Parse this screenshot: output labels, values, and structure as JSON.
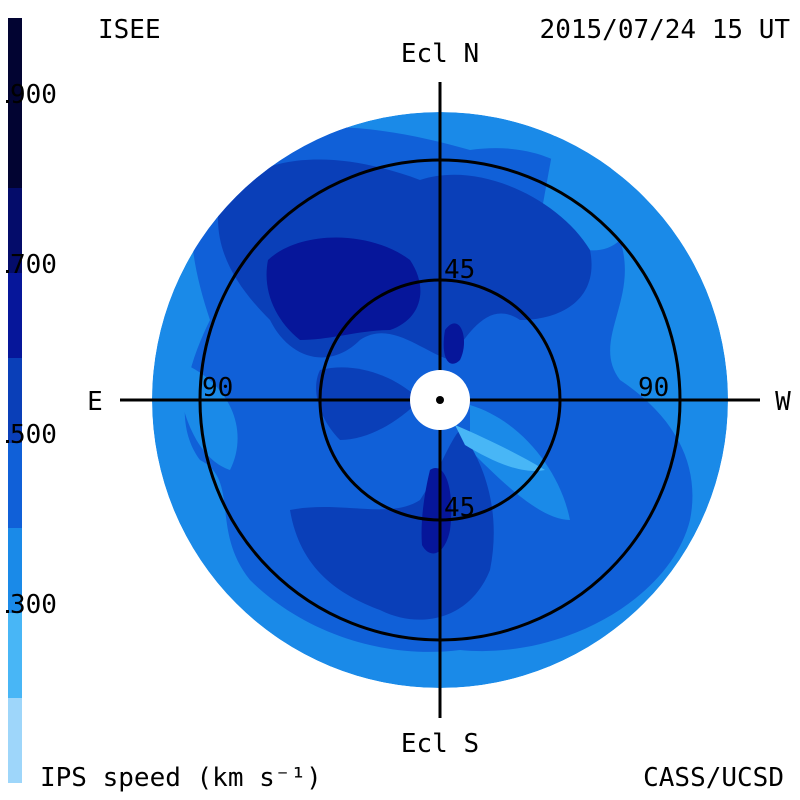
{
  "header": {
    "org": "ISEE",
    "timestamp": "2015/07/24 15 UT"
  },
  "footer": {
    "units": "IPS speed (km s⁻¹)",
    "credit": "CASS/UCSD"
  },
  "directions": {
    "north": "Ecl N",
    "south": "Ecl S",
    "east": "E",
    "west": "W"
  },
  "ring_labels": {
    "inner_north": "45",
    "inner_south": "45",
    "outer_east": "90",
    "outer_west": "90"
  },
  "colorbar": {
    "tick_labels": [
      "900",
      "700",
      "500",
      "300"
    ],
    "bands": [
      {
        "color": "#9ed6fa"
      },
      {
        "color": "#48b6f6"
      },
      {
        "color": "#1a8ae8"
      },
      {
        "color": "#1060d8"
      },
      {
        "color": "#0a3fb8"
      },
      {
        "color": "#06169a"
      },
      {
        "color": "#040c6a"
      },
      {
        "color": "#020432"
      }
    ]
  },
  "colors": {
    "background": "#ffffff",
    "grid": "#000000",
    "sun_disk": "#ffffff"
  }
}
